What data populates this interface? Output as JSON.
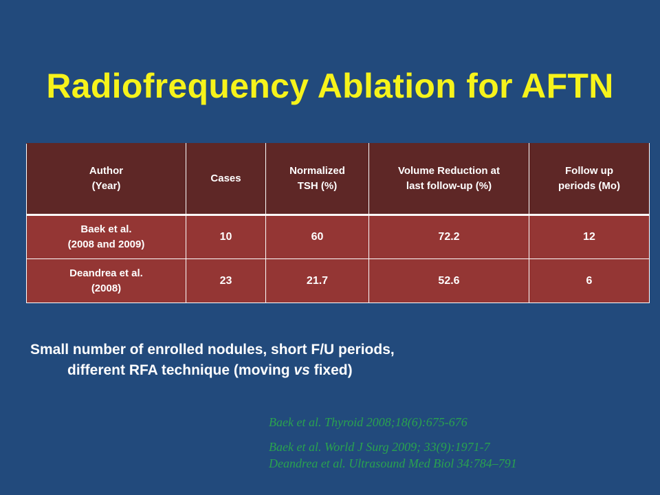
{
  "slide": {
    "title": "Radiofrequency Ablation for AFTN"
  },
  "table": {
    "headers": [
      [
        "Author",
        "(Year)"
      ],
      [
        "Cases"
      ],
      [
        "Normalized",
        "TSH (%)"
      ],
      [
        "Volume Reduction at",
        "last follow-up (%)"
      ],
      [
        "Follow up",
        "periods (Mo)"
      ]
    ],
    "rows": [
      {
        "author": [
          "Baek et al.",
          "(2008 and 2009)"
        ],
        "cases": "10",
        "normalized_tsh": "60",
        "volume_reduction": "72.2",
        "follow_up": "12"
      },
      {
        "author": [
          "Deandrea et al.",
          "(2008)"
        ],
        "cases": "23",
        "normalized_tsh": "21.7",
        "volume_reduction": "52.6",
        "follow_up": "6"
      }
    ]
  },
  "note": {
    "line1": "Small number of enrolled nodules, short F/U periods,",
    "line2_before": "different RFA technique (moving ",
    "line2_italic": "vs",
    "line2_after": " fixed)"
  },
  "references": [
    "Baek et al. Thyroid 2008;18(6):675-676",
    "Baek et al. World J Surg 2009; 33(9):1971-7",
    "Deandrea et al. Ultrasound Med Biol 34:784–791"
  ],
  "colors": {
    "background": "#224a7c",
    "title": "#f6f31b",
    "table_header": "#5e2726",
    "table_body": "#943634",
    "references": "#2aa24f"
  }
}
